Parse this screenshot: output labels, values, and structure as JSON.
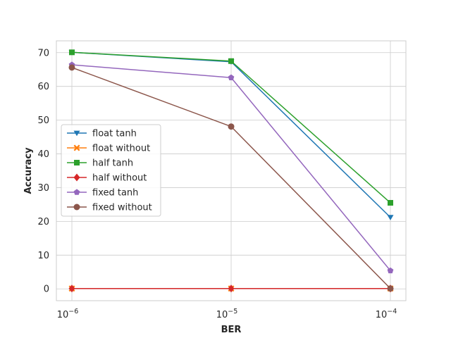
{
  "chart_data": {
    "type": "line",
    "title": "",
    "xlabel": "BER",
    "ylabel": "Accuracy",
    "x_scale": "log",
    "x": [
      1e-06,
      1e-05,
      0.0001
    ],
    "x_tick_labels": [
      {
        "base": "10",
        "exp": "−6"
      },
      {
        "base": "10",
        "exp": "−5"
      },
      {
        "base": "10",
        "exp": "−4"
      }
    ],
    "ylim": [
      -3.5,
      73.5
    ],
    "y_ticks": [
      0,
      10,
      20,
      30,
      40,
      50,
      60,
      70
    ],
    "grid": true,
    "legend_position": "center-left",
    "series": [
      {
        "name": "float tanh",
        "values": [
          70.1,
          67.3,
          21.2
        ],
        "color": "#1f77b4",
        "marker": "triangle-down"
      },
      {
        "name": "float without",
        "values": [
          0.1,
          0.1,
          0.1
        ],
        "color": "#ff7f0e",
        "marker": "x-filled"
      },
      {
        "name": "half tanh",
        "values": [
          70.1,
          67.5,
          25.5
        ],
        "color": "#2ca02c",
        "marker": "square"
      },
      {
        "name": "half without",
        "values": [
          0.1,
          0.1,
          0.1
        ],
        "color": "#d62728",
        "marker": "diamond"
      },
      {
        "name": "fixed tanh",
        "values": [
          66.4,
          62.6,
          5.4
        ],
        "color": "#9467bd",
        "marker": "pentagon"
      },
      {
        "name": "fixed without",
        "values": [
          65.6,
          48.1,
          0.1
        ],
        "color": "#8c564b",
        "marker": "circle"
      }
    ]
  }
}
